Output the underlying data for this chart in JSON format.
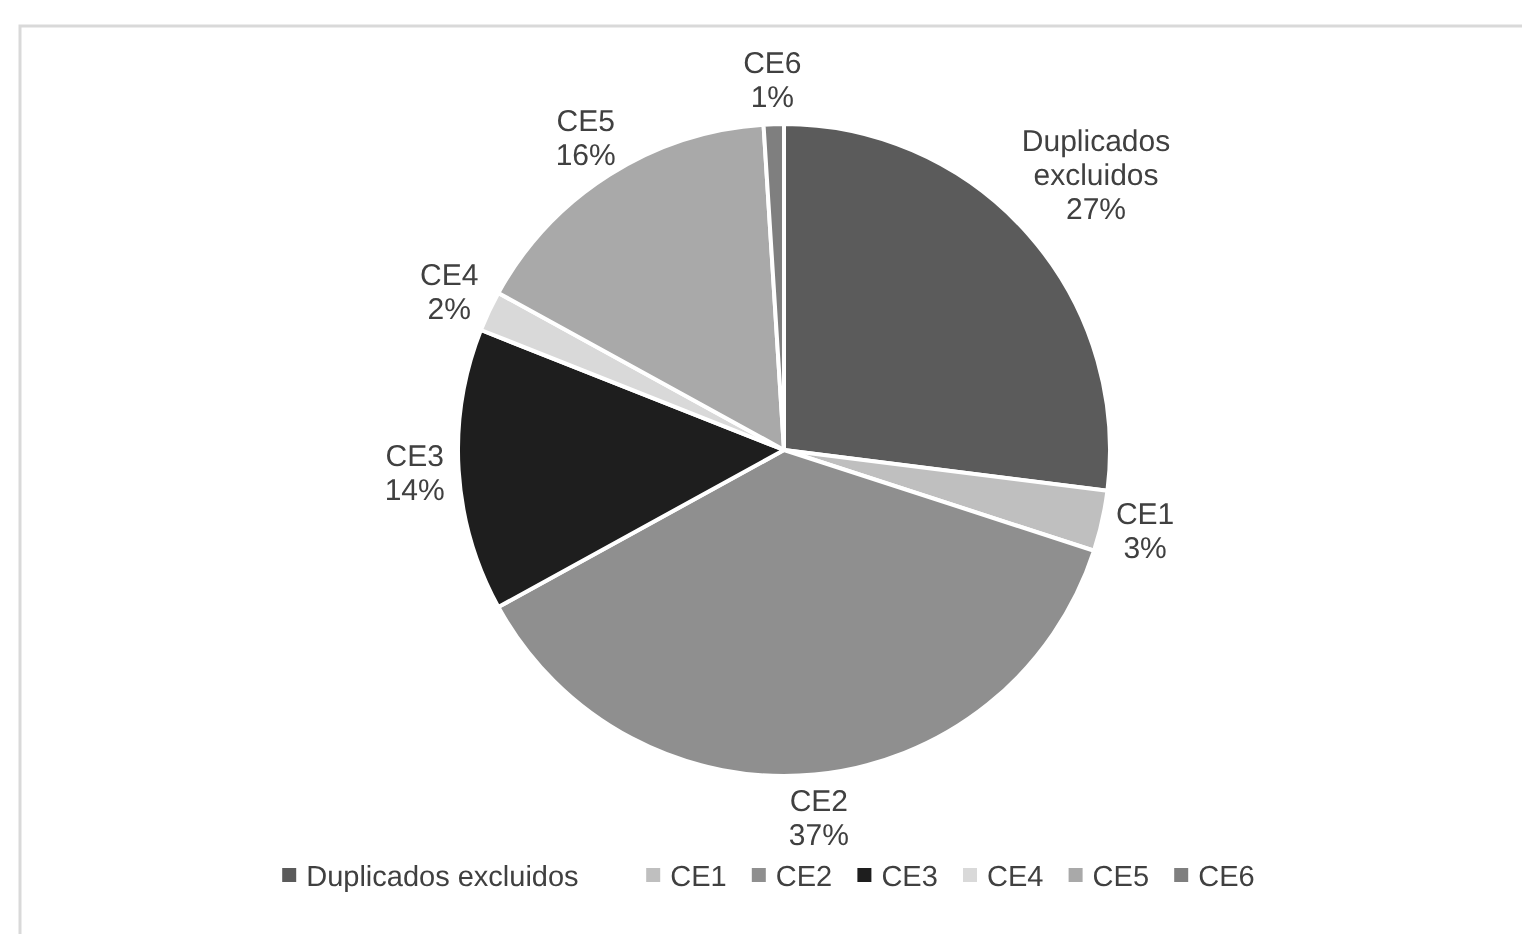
{
  "chart_data": {
    "type": "pie",
    "categories": [
      "Duplicados excluidos",
      "CE1",
      "CE2",
      "CE3",
      "CE4",
      "CE5",
      "CE6"
    ],
    "values": [
      27,
      3,
      37,
      14,
      2,
      16,
      1
    ],
    "colors": [
      "#5b5b5b",
      "#bfbfbf",
      "#8f8f8f",
      "#1e1e1e",
      "#d9d9d9",
      "#a9a9a9",
      "#7f7f7f"
    ],
    "value_labels": [
      "27%",
      "3%",
      "37%",
      "14%",
      "2%",
      "16%",
      "1%"
    ],
    "legend": "bottom"
  }
}
